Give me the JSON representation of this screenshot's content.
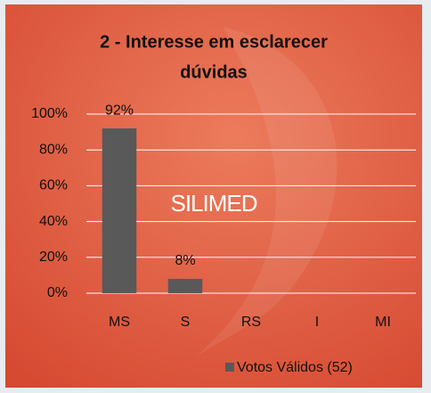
{
  "chart_data": {
    "type": "bar",
    "title_lines": [
      "2 - Interesse em esclarecer",
      "dúvidas"
    ],
    "watermark": "SILIMED",
    "categories": [
      "MS",
      "S",
      "RS",
      "I",
      "MI"
    ],
    "series": [
      {
        "name": "Votos Válidos (52)",
        "color": "#595959",
        "values": [
          92,
          8,
          0,
          0,
          0
        ],
        "value_labels": [
          "92%",
          "8%",
          null,
          null,
          null
        ]
      }
    ],
    "ylim": [
      0,
      100
    ],
    "yticks": [
      {
        "value": 0,
        "label": "0%"
      },
      {
        "value": 20,
        "label": "20%"
      },
      {
        "value": 40,
        "label": "40%"
      },
      {
        "value": 60,
        "label": "60%"
      },
      {
        "value": 80,
        "label": "80%"
      },
      {
        "value": 100,
        "label": "100%"
      }
    ],
    "grid": true
  }
}
